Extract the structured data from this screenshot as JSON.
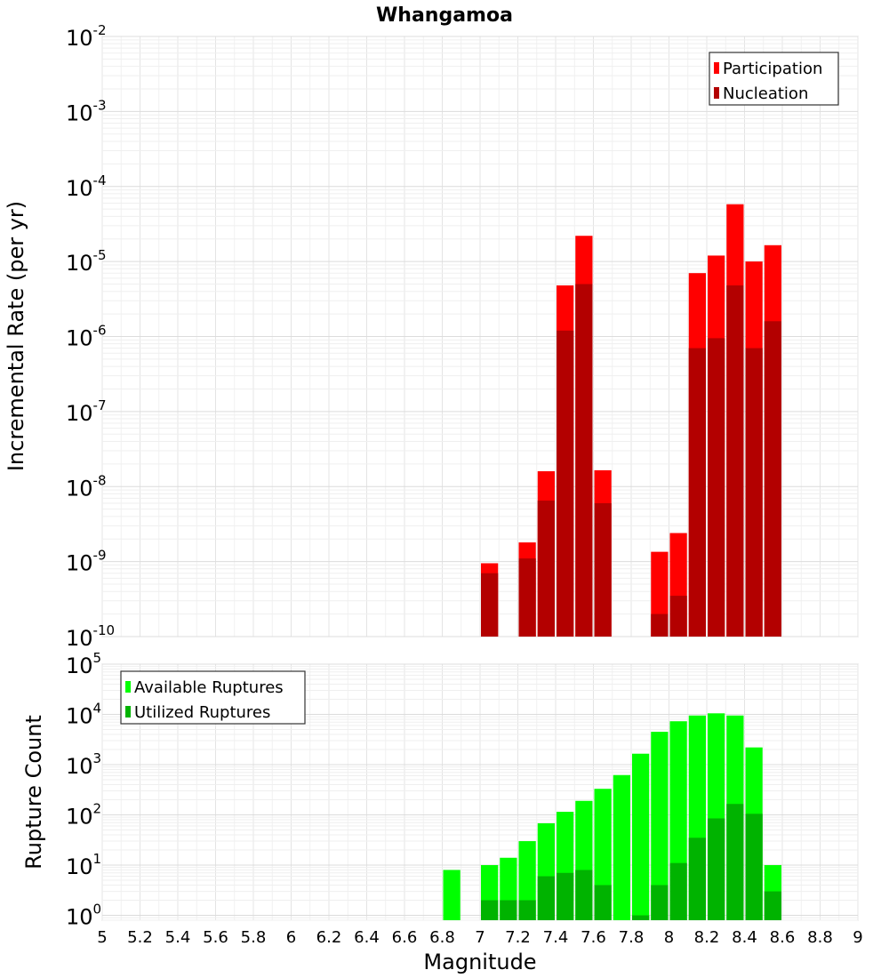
{
  "title": "Whangamoa",
  "colors": {
    "participation": "#ff0000",
    "nucleation": "#b30000",
    "available": "#00ff00",
    "utilized": "#00b300"
  },
  "chart_data": [
    {
      "type": "bar",
      "name": "rate",
      "ylabel": "Incremental Rate (per yr)",
      "y_scale": "log",
      "ylim": [
        1e-10,
        0.01
      ],
      "y_tick_exponents": [
        -10,
        -9,
        -8,
        -7,
        -6,
        -5,
        -4,
        -3,
        -2
      ],
      "legend_position": "top-right",
      "series": [
        {
          "name": "Participation",
          "points": [
            {
              "x": 7.05,
              "y": 9.5e-10
            },
            {
              "x": 7.25,
              "y": 1.8e-09
            },
            {
              "x": 7.35,
              "y": 1.6e-08
            },
            {
              "x": 7.45,
              "y": 4.8e-06
            },
            {
              "x": 7.55,
              "y": 2.2e-05
            },
            {
              "x": 7.65,
              "y": 1.65e-08
            },
            {
              "x": 7.95,
              "y": 1.35e-09
            },
            {
              "x": 8.05,
              "y": 2.4e-09
            },
            {
              "x": 8.15,
              "y": 7e-06
            },
            {
              "x": 8.25,
              "y": 1.2e-05
            },
            {
              "x": 8.35,
              "y": 5.8e-05
            },
            {
              "x": 8.45,
              "y": 1e-05
            },
            {
              "x": 8.55,
              "y": 1.65e-05
            }
          ]
        },
        {
          "name": "Nucleation",
          "points": [
            {
              "x": 7.05,
              "y": 7e-10
            },
            {
              "x": 7.25,
              "y": 1.1e-09
            },
            {
              "x": 7.35,
              "y": 6.5e-09
            },
            {
              "x": 7.45,
              "y": 1.2e-06
            },
            {
              "x": 7.55,
              "y": 5e-06
            },
            {
              "x": 7.65,
              "y": 6e-09
            },
            {
              "x": 7.95,
              "y": 2e-10
            },
            {
              "x": 8.05,
              "y": 3.5e-10
            },
            {
              "x": 8.15,
              "y": 7e-07
            },
            {
              "x": 8.25,
              "y": 9.5e-07
            },
            {
              "x": 8.35,
              "y": 4.8e-06
            },
            {
              "x": 8.45,
              "y": 7e-07
            },
            {
              "x": 8.55,
              "y": 1.6e-06
            }
          ]
        }
      ]
    },
    {
      "type": "bar",
      "name": "count",
      "ylabel": "Rupture Count",
      "xlabel": "Magnitude",
      "y_scale": "log",
      "ylim": [
        0.8,
        100000
      ],
      "y_tick_exponents": [
        0,
        1,
        2,
        3,
        4,
        5
      ],
      "xlim": [
        5,
        9
      ],
      "x_ticks": [
        "5",
        "5.2",
        "5.4",
        "5.6",
        "5.8",
        "6",
        "6.2",
        "6.4",
        "6.6",
        "6.8",
        "7",
        "7.2",
        "7.4",
        "7.6",
        "7.8",
        "8",
        "8.2",
        "8.4",
        "8.6",
        "8.8",
        "9"
      ],
      "legend_position": "top-left",
      "series": [
        {
          "name": "Available Ruptures",
          "points": [
            {
              "x": 6.85,
              "y": 8
            },
            {
              "x": 7.05,
              "y": 10
            },
            {
              "x": 7.15,
              "y": 14
            },
            {
              "x": 7.25,
              "y": 30
            },
            {
              "x": 7.35,
              "y": 68
            },
            {
              "x": 7.45,
              "y": 115
            },
            {
              "x": 7.55,
              "y": 190
            },
            {
              "x": 7.65,
              "y": 330
            },
            {
              "x": 7.75,
              "y": 620
            },
            {
              "x": 7.85,
              "y": 1650
            },
            {
              "x": 7.95,
              "y": 4500
            },
            {
              "x": 8.05,
              "y": 7300
            },
            {
              "x": 8.15,
              "y": 9500
            },
            {
              "x": 8.25,
              "y": 10500
            },
            {
              "x": 8.35,
              "y": 9500
            },
            {
              "x": 8.45,
              "y": 2200
            },
            {
              "x": 8.55,
              "y": 10
            }
          ]
        },
        {
          "name": "Utilized Ruptures",
          "points": [
            {
              "x": 7.05,
              "y": 2
            },
            {
              "x": 7.15,
              "y": 2
            },
            {
              "x": 7.25,
              "y": 2
            },
            {
              "x": 7.35,
              "y": 6
            },
            {
              "x": 7.45,
              "y": 7
            },
            {
              "x": 7.55,
              "y": 8
            },
            {
              "x": 7.65,
              "y": 4
            },
            {
              "x": 7.85,
              "y": 1
            },
            {
              "x": 7.95,
              "y": 4
            },
            {
              "x": 8.05,
              "y": 11
            },
            {
              "x": 8.15,
              "y": 35
            },
            {
              "x": 8.25,
              "y": 85
            },
            {
              "x": 8.35,
              "y": 165
            },
            {
              "x": 8.45,
              "y": 105
            },
            {
              "x": 8.55,
              "y": 3
            }
          ]
        }
      ]
    }
  ]
}
